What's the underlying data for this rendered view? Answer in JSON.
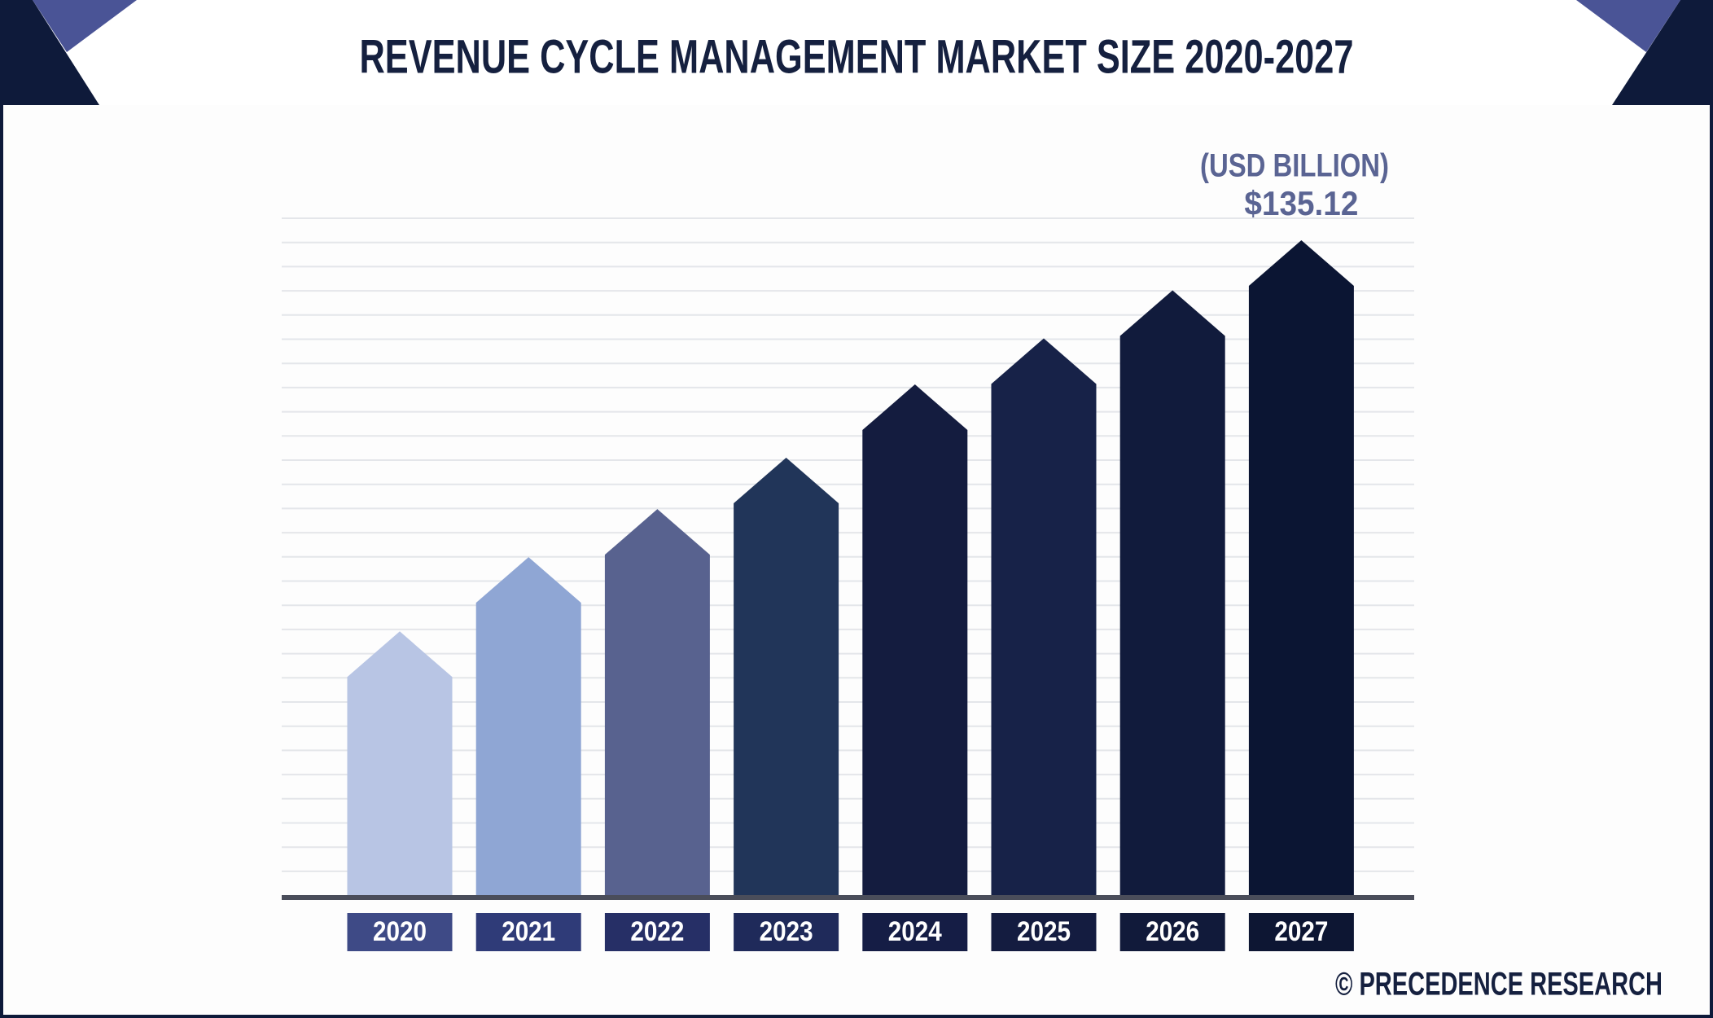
{
  "chart_data": {
    "type": "bar",
    "title": "REVENUE CYCLE MANAGEMENT MARKET SIZE 2020-2027",
    "unit": "(USD BILLION)",
    "source": "© PRECEDENCE RESEARCH",
    "categories": [
      "2020",
      "2021",
      "2022",
      "2023",
      "2024",
      "2025",
      "2026",
      "2027"
    ],
    "values": [
      54.5,
      69.8,
      79.7,
      90.3,
      105.4,
      114.9,
      124.8,
      135.12
    ],
    "value_labels": [
      null,
      null,
      null,
      null,
      null,
      null,
      null,
      "$135.12"
    ],
    "colors": [
      "#b8c5e4",
      "#8fa6d4",
      "#58628f",
      "#213559",
      "#141c3f",
      "#172248",
      "#111b3c",
      "#0b1533"
    ],
    "label_colors": [
      "#3e4a86",
      "#2f3b78",
      "#262f66",
      "#1f2a5a",
      "#151d45",
      "#141c40",
      "#111a3a",
      "#0d1633"
    ],
    "grid": true
  }
}
